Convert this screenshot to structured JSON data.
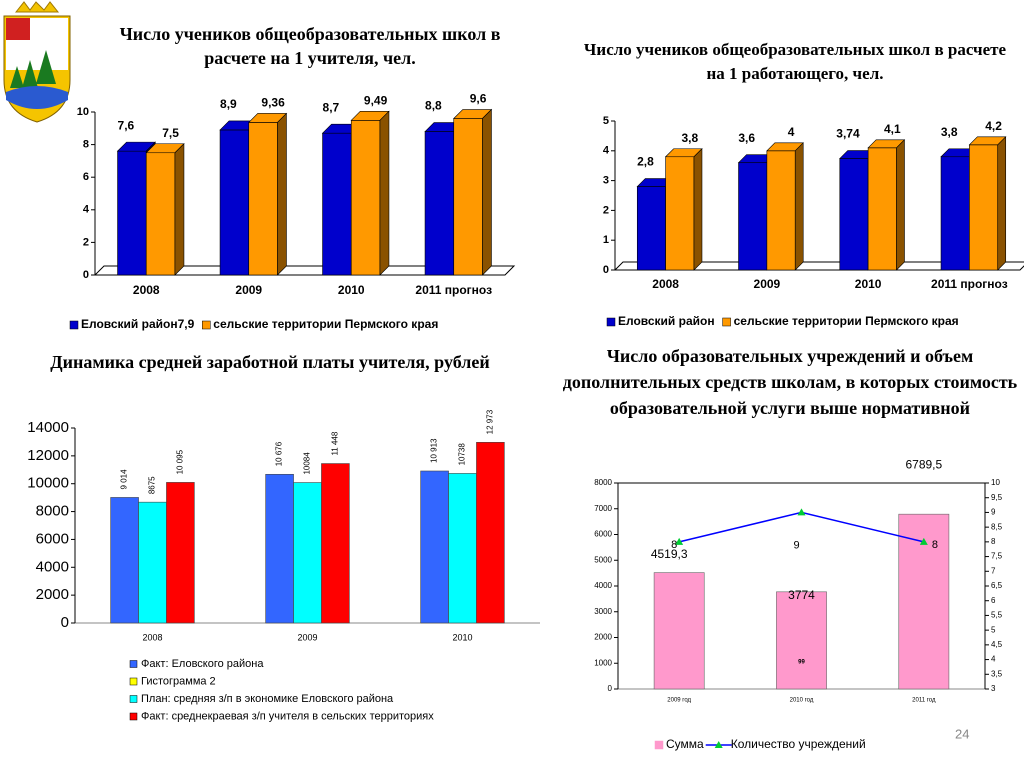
{
  "page_number": "24",
  "chart_data": [
    {
      "type": "bar3d",
      "title": "Число учеников общеобразовательных школ в расчете на 1 учителя, чел.",
      "categories": [
        "2008",
        "2009",
        "2010",
        "2011 прогноз"
      ],
      "series": [
        {
          "name": "Еловский район7,9",
          "color": "#0000cc",
          "values": [
            7.6,
            8.9,
            8.7,
            8.8
          ],
          "value_labels": [
            "7,6",
            "8,9",
            "8,7",
            "8,8"
          ]
        },
        {
          "name": "сельские территории Пермского края",
          "color": "#ff9900",
          "values": [
            7.5,
            9.36,
            9.49,
            9.6
          ],
          "value_labels": [
            "7,5",
            "9,36",
            "9,49",
            "9,6"
          ]
        }
      ],
      "ylim": [
        0,
        10
      ],
      "yticks": [
        0,
        2,
        4,
        6,
        8,
        10
      ]
    },
    {
      "type": "bar3d",
      "title": "Число учеников общеобразовательных школ в расчете на 1 работающего, чел.",
      "categories": [
        "2008",
        "2009",
        "2010",
        "2011 прогноз"
      ],
      "series": [
        {
          "name": "Еловский район",
          "color": "#0000cc",
          "values": [
            2.8,
            3.6,
            3.74,
            3.8
          ],
          "value_labels": [
            "2,8",
            "3,6",
            "3,74",
            "3,8"
          ]
        },
        {
          "name": "сельские территории Пермского края",
          "color": "#ff9900",
          "values": [
            3.8,
            4,
            4.1,
            4.2
          ],
          "value_labels": [
            "3,8",
            "4",
            "4,1",
            "4,2"
          ]
        }
      ],
      "ylim": [
        0,
        5
      ],
      "yticks": [
        0,
        1,
        2,
        3,
        4,
        5
      ]
    },
    {
      "type": "bar",
      "title": "Динамика средней заработной платы учителя, рублей",
      "categories": [
        "2008",
        "2009",
        "2010"
      ],
      "series": [
        {
          "name": "Факт: Еловского района",
          "color": "#3366ff",
          "values": [
            9014,
            10676,
            10913
          ],
          "value_labels": [
            "9 014",
            "10 676",
            "10 913"
          ]
        },
        {
          "name": "Гистограмма 2",
          "color": "#ffff00",
          "values": [
            null,
            null,
            null
          ]
        },
        {
          "name": "План: средняя з/п в экономике Еловского района",
          "color": "#00ffff",
          "values": [
            8675,
            10084,
            10738
          ]
        },
        {
          "name": "Факт: среднекраевая з/п учителя в сельских территориях",
          "color": "#ff0000",
          "values": [
            10095,
            11448,
            12973
          ],
          "value_labels": [
            "10 095",
            "11 448",
            "12 973"
          ]
        }
      ],
      "ylim": [
        0,
        14000
      ],
      "yticks": [
        0,
        2000,
        4000,
        6000,
        8000,
        10000,
        12000,
        14000
      ]
    },
    {
      "type": "bar",
      "title": "Число образовательных учреждений и объем дополнительных средств школам, в которых стоимость образовательной услуги выше нормативной",
      "categories": [
        "2009 год",
        "2010 год",
        "2011 год"
      ],
      "series": [
        {
          "name": "Сумма",
          "color": "#ff99cc",
          "values": [
            4519.3,
            3774,
            6789.5
          ],
          "value_labels": [
            "4519,3",
            "3774",
            "6789,5"
          ]
        },
        {
          "name": "Количество учреждений",
          "type": "line",
          "axis": "y2",
          "color": "#0000ff",
          "marker_color": "#00cc33",
          "values": [
            8,
            9,
            8
          ]
        }
      ],
      "annotations": [
        "99"
      ],
      "ylim": [
        0,
        8000
      ],
      "yticks": [
        0,
        1000,
        2000,
        3000,
        4000,
        5000,
        6000,
        7000,
        8000
      ],
      "y2lim": [
        3,
        10
      ],
      "y2ticks": [
        3,
        {
          "value": 3.5,
          "label": "3,5"
        },
        4,
        {
          "value": 4.5,
          "label": "4,5"
        },
        5,
        {
          "value": 5.5,
          "label": "5,5"
        },
        6,
        {
          "value": 6.5,
          "label": "6,5"
        },
        7,
        {
          "value": 7.5,
          "label": "7,5"
        },
        8,
        {
          "value": 8.5,
          "label": "8,5"
        },
        9,
        {
          "value": 9.5,
          "label": "9,5"
        },
        10
      ]
    }
  ]
}
